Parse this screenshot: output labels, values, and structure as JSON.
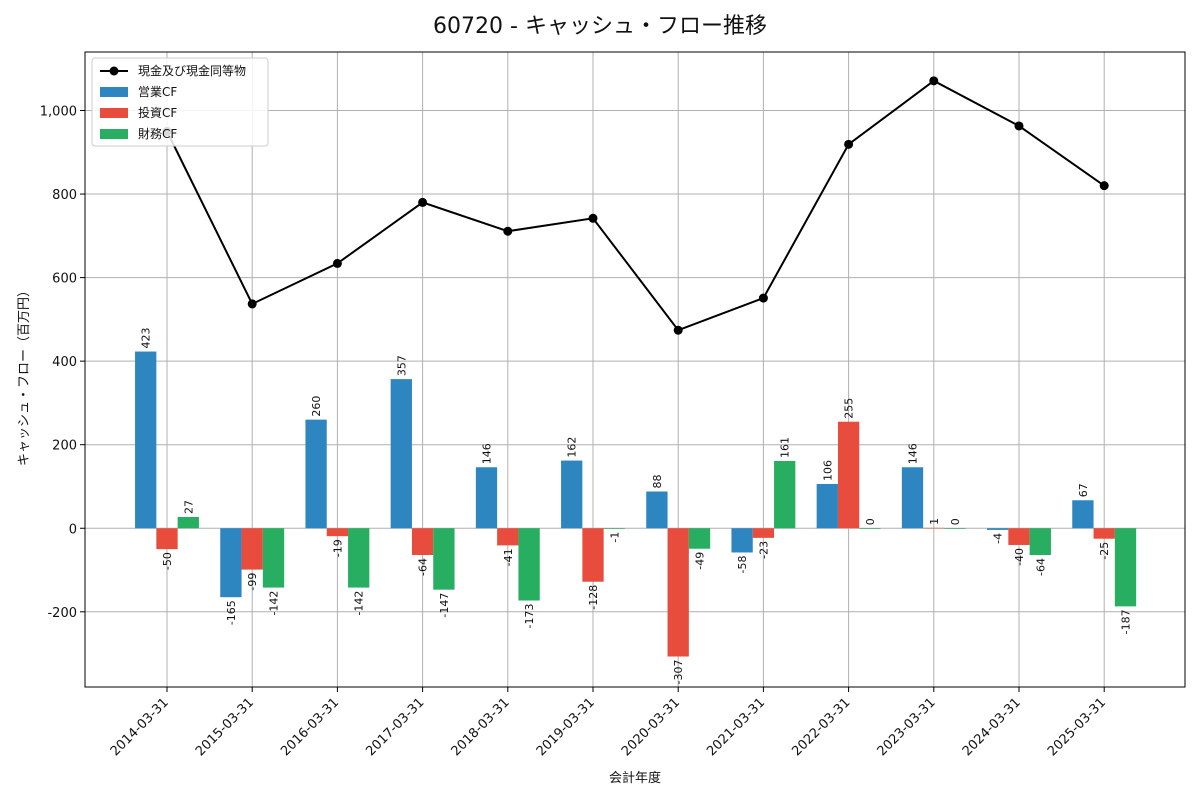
{
  "chart_data": {
    "type": "bar",
    "title": "60720 - キャッシュ・フロー推移",
    "xlabel": "会計年度",
    "ylabel": "キャッシュ・フロー（百万円）",
    "categories": [
      "2014-03-31",
      "2015-03-31",
      "2016-03-31",
      "2017-03-31",
      "2018-03-31",
      "2019-03-31",
      "2020-03-31",
      "2021-03-31",
      "2022-03-31",
      "2023-03-31",
      "2024-03-31",
      "2025-03-31"
    ],
    "ylim": [
      -380,
      1140
    ],
    "yticks": [
      -200,
      0,
      200,
      400,
      600,
      800,
      1000
    ],
    "ytick_labels": [
      "-200",
      "0",
      "200",
      "400",
      "600",
      "800",
      "1,000"
    ],
    "grid": true,
    "legend_position": "top-left",
    "series": [
      {
        "name": "営業CF",
        "kind": "bar",
        "color": "#2e86c1",
        "values": [
          423,
          -165,
          260,
          357,
          146,
          162,
          88,
          -58,
          106,
          146,
          -4,
          67
        ]
      },
      {
        "name": "投資CF",
        "kind": "bar",
        "color": "#e74c3c",
        "values": [
          -50,
          -99,
          -19,
          -64,
          -41,
          -128,
          -307,
          -23,
          255,
          1,
          -40,
          -25
        ]
      },
      {
        "name": "財務CF",
        "kind": "bar",
        "color": "#27ae60",
        "values": [
          27,
          -142,
          -142,
          -147,
          -173,
          -1,
          -49,
          161,
          0,
          0,
          -64,
          -187
        ]
      },
      {
        "name": "現金及び現金同等物",
        "kind": "line",
        "color": "#000000",
        "values": [
          950,
          537,
          634,
          780,
          711,
          742,
          474,
          551,
          919,
          1071,
          963,
          820
        ]
      }
    ]
  }
}
